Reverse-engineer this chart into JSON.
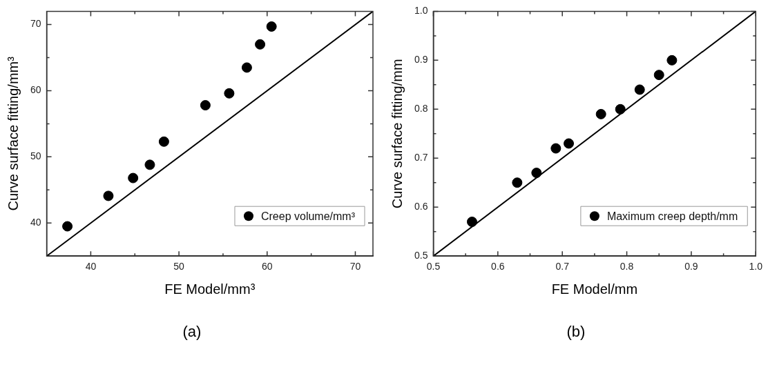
{
  "chart_data": [
    {
      "type": "scatter",
      "xlabel": "FE Model/mm³",
      "ylabel": "Curve surface fitting/mm³",
      "xlim": [
        35,
        72
      ],
      "ylim": [
        35,
        72
      ],
      "xticks": [
        40,
        {
          "value": 45,
          "label": null
        },
        50,
        {
          "value": 55,
          "label": null
        },
        60,
        {
          "value": 65,
          "label": null
        },
        70
      ],
      "yticks": [
        40,
        {
          "value": 45,
          "label": null
        },
        50,
        {
          "value": 55,
          "label": null
        },
        60,
        {
          "value": 65,
          "label": null
        },
        70
      ],
      "grid": false,
      "legend": "bottom right",
      "annotations": [
        "(a)"
      ],
      "series": [
        {
          "type": "scatter",
          "name": "Creep volume/mm³",
          "color": "#000000",
          "marker": "circle",
          "x": [
            37.35,
            42.0,
            44.8,
            46.7,
            48.3,
            53.0,
            55.7,
            57.7,
            59.2,
            60.5
          ],
          "values": [
            39.5,
            44.1,
            46.8,
            48.8,
            52.3,
            57.8,
            59.6,
            63.5,
            67.0,
            69.7
          ]
        },
        {
          "type": "line",
          "color": "#000000",
          "marker": "none",
          "line_style": "solid",
          "x": [
            35,
            72
          ],
          "values": [
            35,
            72
          ]
        }
      ]
    },
    {
      "type": "scatter",
      "xlabel": "FE Model/mm",
      "ylabel": "Curve surface fitting/mm",
      "xlim": [
        0.5,
        1.0
      ],
      "ylim": [
        0.5,
        1.0
      ],
      "xticks": [
        0.5,
        {
          "value": 0.55,
          "label": null
        },
        0.6,
        {
          "value": 0.65,
          "label": null
        },
        0.7,
        {
          "value": 0.75,
          "label": null
        },
        0.8,
        {
          "value": 0.85,
          "label": null
        },
        0.9,
        {
          "value": 0.95,
          "label": null
        },
        {
          "value": 1.0,
          "label": "1.0"
        }
      ],
      "yticks": [
        0.5,
        {
          "value": 0.55,
          "label": null
        },
        0.6,
        {
          "value": 0.65,
          "label": null
        },
        0.7,
        {
          "value": 0.75,
          "label": null
        },
        0.8,
        {
          "value": 0.85,
          "label": null
        },
        0.9,
        {
          "value": 0.95,
          "label": null
        },
        {
          "value": 1.0,
          "label": "1.0"
        }
      ],
      "grid": false,
      "legend": "bottom right",
      "annotations": [
        "(b)"
      ],
      "series": [
        {
          "type": "scatter",
          "name": "Maximum creep depth/mm",
          "color": "#000000",
          "marker": "circle",
          "x": [
            0.56,
            0.63,
            0.66,
            0.69,
            0.71,
            0.76,
            0.79,
            0.82,
            0.85,
            0.87
          ],
          "values": [
            0.57,
            0.65,
            0.67,
            0.72,
            0.73,
            0.79,
            0.8,
            0.84,
            0.87,
            0.9
          ]
        },
        {
          "type": "line",
          "color": "#000000",
          "marker": "none",
          "line_style": "solid",
          "x": [
            0.5,
            1.0
          ],
          "values": [
            0.5,
            1.0
          ]
        }
      ]
    }
  ]
}
